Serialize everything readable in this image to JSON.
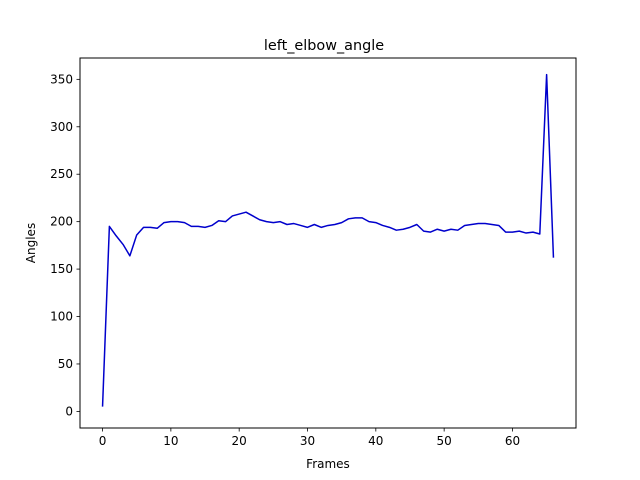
{
  "chart_data": {
    "type": "line",
    "title": "left_elbow_angle",
    "xlabel": "Frames",
    "ylabel": "Angles",
    "xlim": [
      -3.3,
      69.3
    ],
    "ylim": [
      -17.5,
      372.5
    ],
    "xticks": [
      0,
      10,
      20,
      30,
      40,
      50,
      60
    ],
    "yticks": [
      0,
      50,
      100,
      150,
      200,
      250,
      300,
      350
    ],
    "grid": false,
    "series": [
      {
        "name": "left_elbow_angle",
        "color": "#0000cc",
        "x": [
          0,
          1,
          2,
          3,
          4,
          5,
          6,
          7,
          8,
          9,
          10,
          11,
          12,
          13,
          14,
          15,
          16,
          17,
          18,
          19,
          20,
          21,
          22,
          23,
          24,
          25,
          26,
          27,
          28,
          29,
          30,
          31,
          32,
          33,
          34,
          35,
          36,
          37,
          38,
          39,
          40,
          41,
          42,
          43,
          44,
          45,
          46,
          47,
          48,
          49,
          50,
          51,
          52,
          53,
          54,
          55,
          56,
          57,
          58,
          59,
          60,
          61,
          62,
          63,
          64,
          65,
          66
        ],
        "y": [
          5,
          195,
          185,
          176,
          164,
          186,
          194,
          194,
          193,
          199,
          200,
          200,
          199,
          195,
          195,
          194,
          196,
          201,
          200,
          206,
          208,
          210,
          206,
          202,
          200,
          199,
          200,
          197,
          198,
          196,
          194,
          197,
          194,
          196,
          197,
          199,
          203,
          204,
          204,
          200,
          199,
          196,
          194,
          191,
          192,
          194,
          197,
          190,
          189,
          192,
          190,
          192,
          191,
          196,
          197,
          198,
          198,
          197,
          196,
          189,
          189,
          190,
          188,
          189,
          187,
          355,
          162
        ]
      }
    ]
  }
}
